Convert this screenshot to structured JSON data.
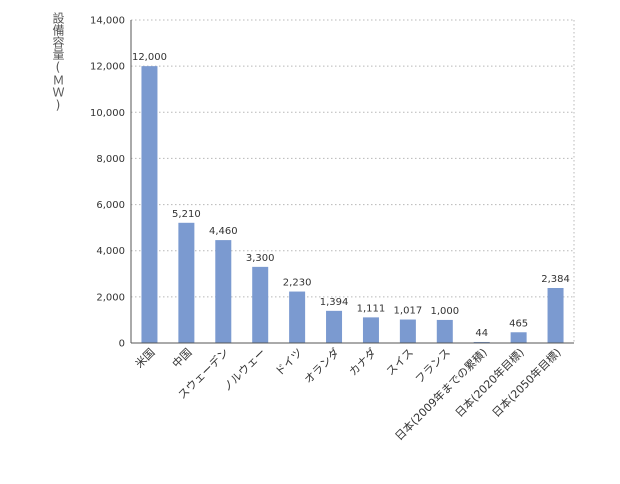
{
  "chart_data": {
    "type": "bar",
    "title": "",
    "xlabel": "",
    "ylabel": "設備容量(ＭＷ)",
    "ylim": [
      0,
      14000
    ],
    "yticks": [
      "0",
      "2,000",
      "4,000",
      "6,000",
      "8,000",
      "10,000",
      "12,000",
      "14,000"
    ],
    "ytick_values": [
      0,
      2000,
      4000,
      6000,
      8000,
      10000,
      12000,
      14000
    ],
    "grid": true,
    "grid_style": "dotted horizontal",
    "categories": [
      "米国",
      "中国",
      "スウェーデン",
      "ノルウェー",
      "ドイツ",
      "オランダ",
      "カナダ",
      "スイス",
      "フランス",
      "日本(2009年までの累積)",
      "日本(2020年目標)",
      "日本(2050年目標)"
    ],
    "values": [
      12000,
      5210,
      4460,
      3300,
      2230,
      1394,
      1111,
      1017,
      1000,
      44,
      465,
      2384
    ],
    "value_labels": [
      "12,000",
      "5,210",
      "4,460",
      "3,300",
      "2,230",
      "1,394",
      "1,111",
      "1,017",
      "1,000",
      "44",
      "465",
      "2,384"
    ],
    "colors": {
      "bar": "#7b9ad0",
      "grid": "#b8b8b8",
      "axis": "#555555",
      "text": "#333333"
    }
  }
}
